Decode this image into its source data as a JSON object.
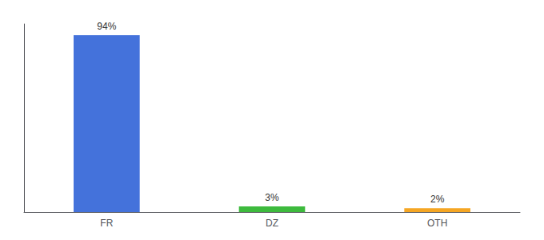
{
  "chart_data": {
    "type": "bar",
    "categories": [
      "FR",
      "DZ",
      "OTH"
    ],
    "values": [
      94,
      3,
      2
    ],
    "value_labels": [
      "94%",
      "3%",
      "2%"
    ],
    "data_labels": true,
    "colors": [
      "#4472db",
      "#3dba3d",
      "#f5a623"
    ],
    "ylim": [
      0,
      100
    ],
    "tick_labels": "x",
    "grid": false
  }
}
